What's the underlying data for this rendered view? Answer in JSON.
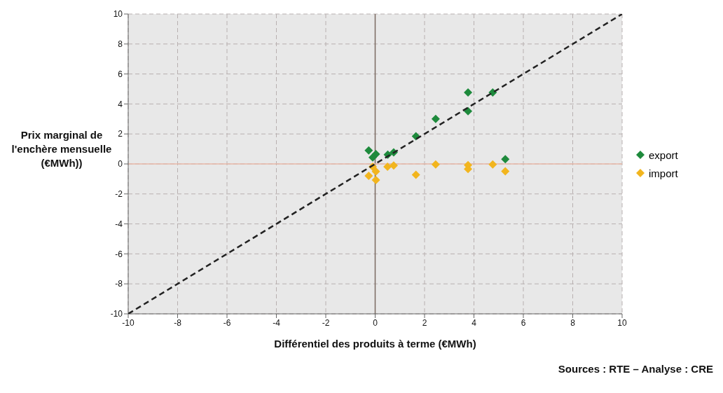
{
  "chart_data": {
    "type": "scatter",
    "xlabel": "Différentiel des produits à terme (€MWh)",
    "ylabel": "Prix marginal de l'enchère mensuelle (€MWh))",
    "annotations": [
      "Sources : RTE – Analyse : CRE"
    ],
    "xlim": [
      -10,
      10
    ],
    "ylim": [
      -10,
      10
    ],
    "xticks": [
      -10,
      -8,
      -6,
      -4,
      -2,
      0,
      2,
      4,
      6,
      8,
      10
    ],
    "yticks": [
      -10,
      -8,
      -6,
      -4,
      -2,
      0,
      2,
      4,
      6,
      8,
      10
    ],
    "grid": true,
    "legend": "right",
    "marker": "diamond",
    "ref_lines": [
      {
        "axis": "x",
        "value": 0,
        "color": "#7a6a60"
      },
      {
        "axis": "y",
        "value": 0,
        "color": "#e8b8a8"
      }
    ],
    "series": [
      {
        "name": "export",
        "color": "#1e8a3c",
        "x": [
          3.76,
          4.76,
          3.76,
          2.45,
          1.65,
          -0.26,
          0.03,
          -0.1,
          0.51,
          0.75,
          5.27
        ],
        "values": [
          4.77,
          4.77,
          3.52,
          3.0,
          1.85,
          0.9,
          0.66,
          0.43,
          0.62,
          0.77,
          0.32
        ]
      },
      {
        "name": "import",
        "color": "#f2b51e",
        "x": [
          -0.1,
          0.03,
          -0.26,
          0.03,
          0.5,
          0.75,
          1.65,
          2.45,
          3.76,
          3.76,
          4.76,
          5.27
        ],
        "values": [
          -0.19,
          -0.5,
          -0.8,
          -1.07,
          -0.19,
          -0.11,
          -0.73,
          -0.03,
          -0.08,
          -0.34,
          -0.03,
          -0.49
        ]
      },
      {
        "type": "line",
        "color": "#222222",
        "line_style": "dashed",
        "marker": "none",
        "x": [
          -10,
          10
        ],
        "values": [
          -10,
          10
        ]
      }
    ]
  }
}
